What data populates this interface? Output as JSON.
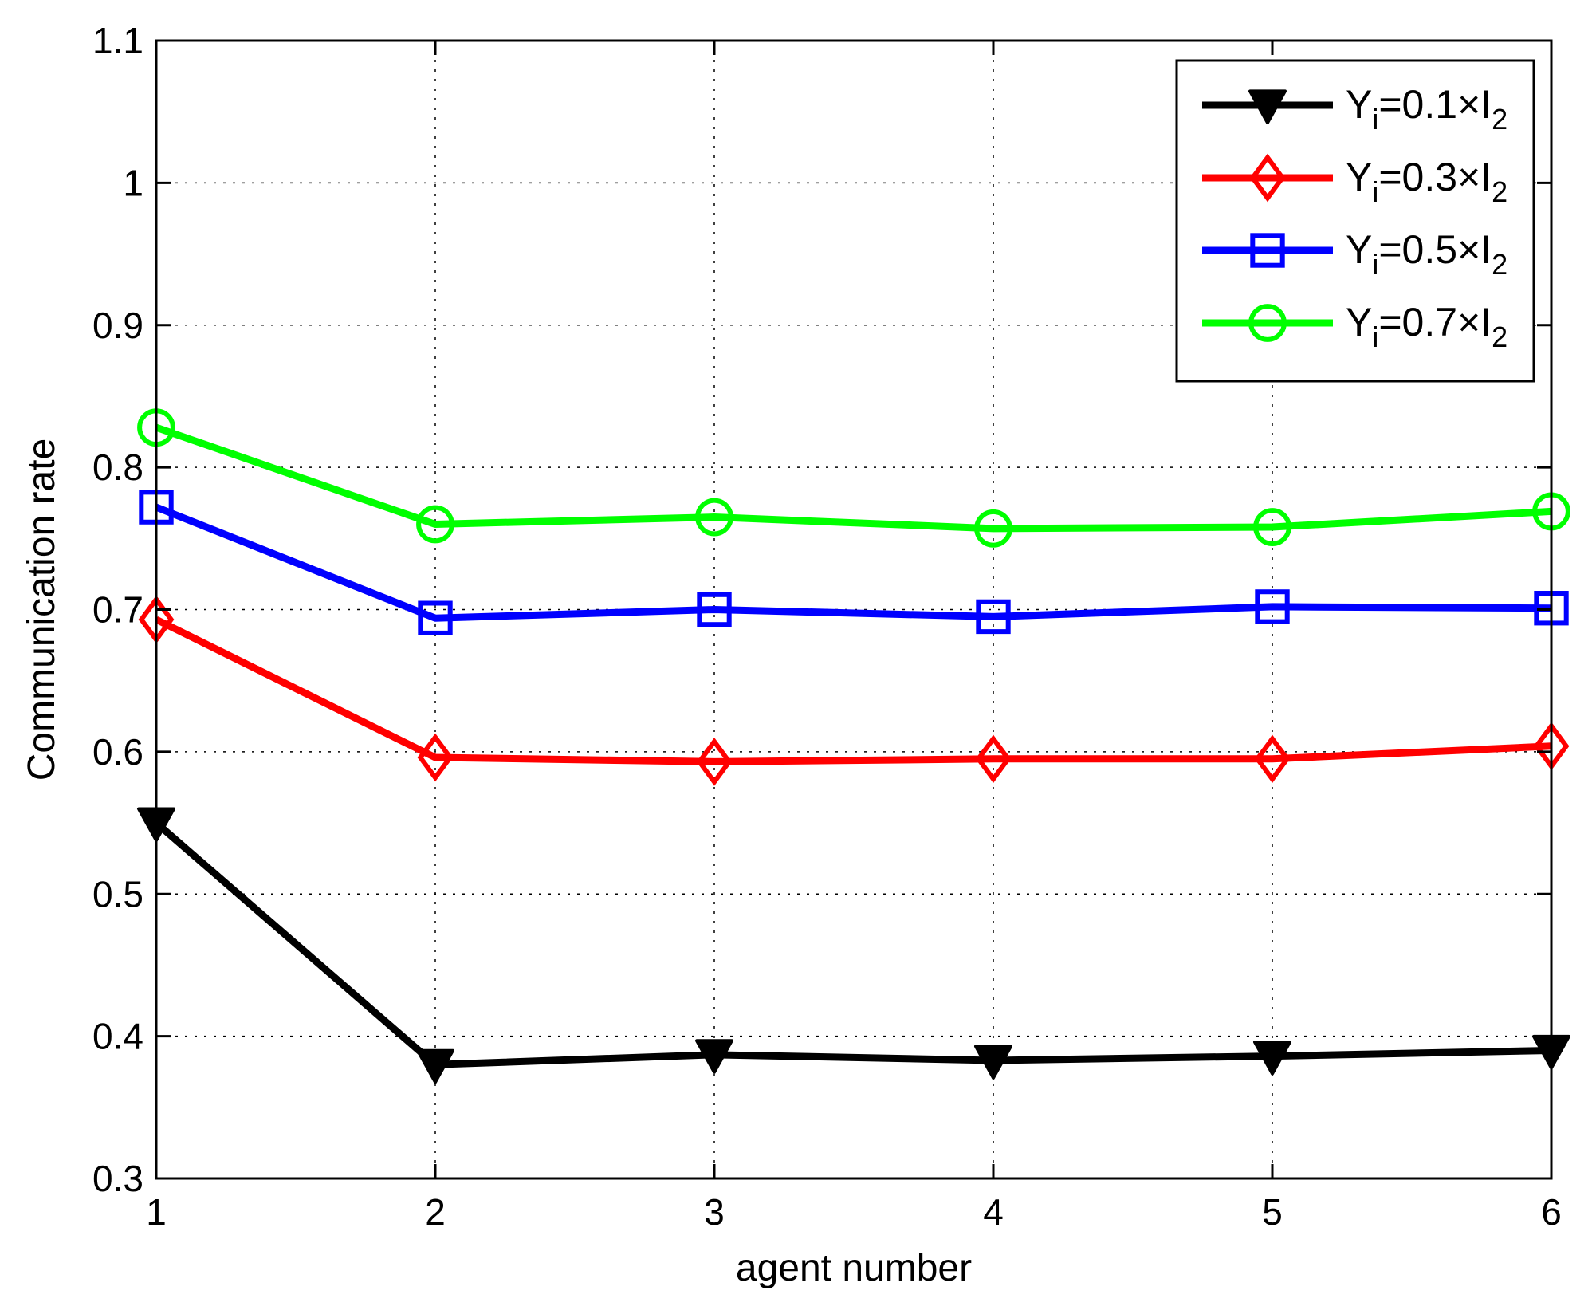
{
  "chart_data": {
    "type": "line",
    "xlabel": "agent number",
    "ylabel": "Communication rate",
    "x": [
      1,
      2,
      3,
      4,
      5,
      6
    ],
    "xlim": [
      1,
      6
    ],
    "ylim": [
      0.3,
      1.1
    ],
    "xticks": [
      "1",
      "2",
      "3",
      "4",
      "5",
      "6"
    ],
    "yticks": [
      "0.3",
      "0.4",
      "0.5",
      "0.6",
      "0.7",
      "0.8",
      "0.9",
      "1",
      "1.1"
    ],
    "grid": true,
    "legend_position": "top-right",
    "series": [
      {
        "label": {
          "main": "Y",
          "sub1": "i",
          "mid": "=0.1×I",
          "sub2": "2"
        },
        "color": "#000000",
        "marker": "triangle-down",
        "values": [
          0.55,
          0.38,
          0.387,
          0.383,
          0.386,
          0.39
        ]
      },
      {
        "label": {
          "main": "Y",
          "sub1": "i",
          "mid": "=0.3×I",
          "sub2": "2"
        },
        "color": "#ff0000",
        "marker": "diamond",
        "values": [
          0.693,
          0.596,
          0.593,
          0.595,
          0.595,
          0.604
        ]
      },
      {
        "label": {
          "main": "Y",
          "sub1": "i",
          "mid": "=0.5×I",
          "sub2": "2"
        },
        "color": "#0000ff",
        "marker": "square",
        "values": [
          0.772,
          0.694,
          0.7,
          0.695,
          0.702,
          0.701
        ]
      },
      {
        "label": {
          "main": "Y",
          "sub1": "i",
          "mid": "=0.7×I",
          "sub2": "2"
        },
        "color": "#00ff00",
        "marker": "circle",
        "values": [
          0.828,
          0.76,
          0.765,
          0.757,
          0.758,
          0.769
        ]
      }
    ]
  }
}
